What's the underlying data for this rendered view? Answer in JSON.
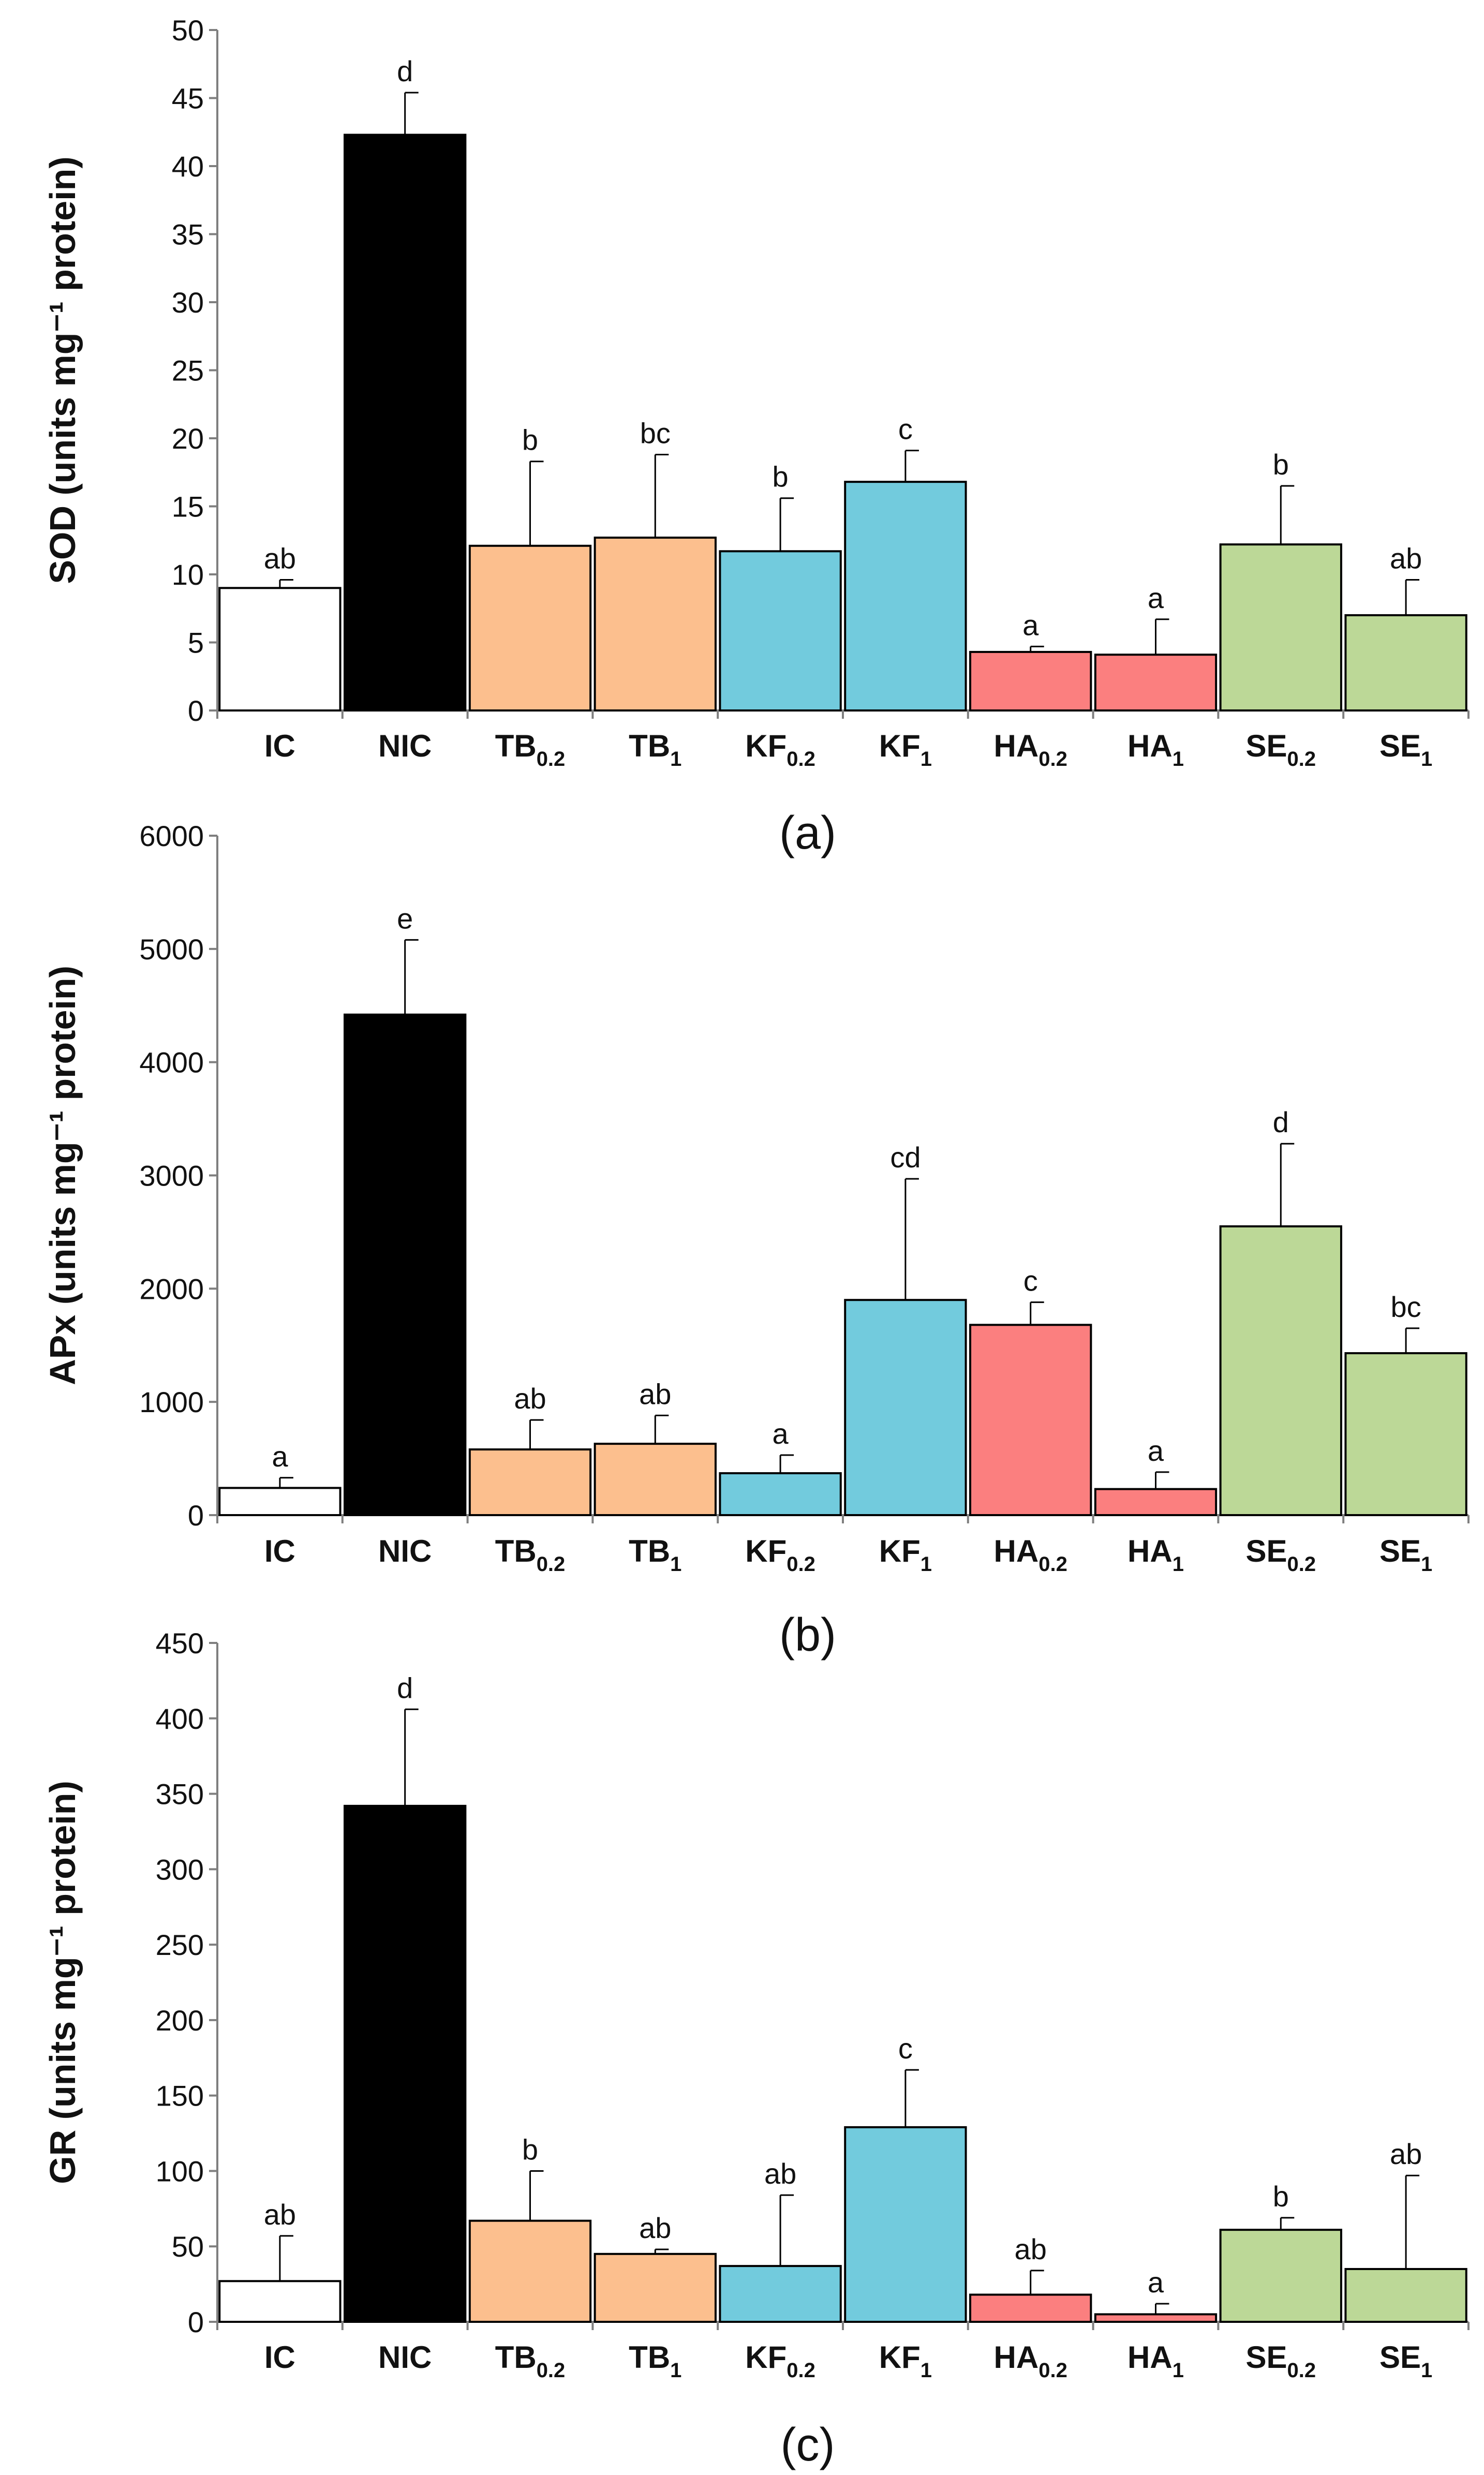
{
  "figure": {
    "panel_labels": [
      "(a)",
      "(b)",
      "(c)"
    ]
  },
  "chart_data": [
    {
      "type": "bar",
      "panel": "(a)",
      "ylabel": "SOD (units mg⁻¹ protein)",
      "xlabel": "",
      "ylim": [
        0,
        50
      ],
      "yticks": [
        0,
        5,
        10,
        15,
        20,
        25,
        30,
        35,
        40,
        45,
        50
      ],
      "categories": [
        {
          "base": "IC",
          "sub": ""
        },
        {
          "base": "NIC",
          "sub": ""
        },
        {
          "base": "TB",
          "sub": "0.2"
        },
        {
          "base": "TB",
          "sub": "1"
        },
        {
          "base": "KF",
          "sub": "0.2"
        },
        {
          "base": "KF",
          "sub": "1"
        },
        {
          "base": "HA",
          "sub": "0.2"
        },
        {
          "base": "HA",
          "sub": "1"
        },
        {
          "base": "SE",
          "sub": "0.2"
        },
        {
          "base": "SE",
          "sub": "1"
        }
      ],
      "values": [
        9.0,
        42.3,
        12.1,
        12.7,
        11.7,
        16.8,
        4.3,
        4.1,
        12.2,
        7.0
      ],
      "errors": [
        0.6,
        3.1,
        6.2,
        6.1,
        3.9,
        2.3,
        0.4,
        2.6,
        4.3,
        2.6
      ],
      "letters": [
        "ab",
        "d",
        "b",
        "bc",
        "b",
        "c",
        "a",
        "a",
        "b",
        "ab"
      ],
      "colors": [
        "#ffffff",
        "#000000",
        "#fcbf8e",
        "#fcbf8e",
        "#72cbdd",
        "#72cbdd",
        "#fb7f7f",
        "#fb7f7f",
        "#bcd897",
        "#bcd897"
      ]
    },
    {
      "type": "bar",
      "panel": "(b)",
      "ylabel": "APx (units mg⁻¹ protein)",
      "xlabel": "",
      "ylim": [
        0,
        6000
      ],
      "yticks": [
        0,
        1000,
        2000,
        3000,
        4000,
        5000,
        6000
      ],
      "categories": [
        {
          "base": "IC",
          "sub": ""
        },
        {
          "base": "NIC",
          "sub": ""
        },
        {
          "base": "TB",
          "sub": "0.2"
        },
        {
          "base": "TB",
          "sub": "1"
        },
        {
          "base": "KF",
          "sub": "0.2"
        },
        {
          "base": "KF",
          "sub": "1"
        },
        {
          "base": "HA",
          "sub": "0.2"
        },
        {
          "base": "HA",
          "sub": "1"
        },
        {
          "base": "SE",
          "sub": "0.2"
        },
        {
          "base": "SE",
          "sub": "1"
        }
      ],
      "values": [
        240,
        4420,
        580,
        630,
        370,
        1900,
        1680,
        230,
        2550,
        1430
      ],
      "errors": [
        90,
        660,
        260,
        250,
        160,
        1070,
        200,
        150,
        730,
        220
      ],
      "letters": [
        "a",
        "e",
        "ab",
        "ab",
        "a",
        "cd",
        "c",
        "a",
        "d",
        "bc"
      ],
      "colors": [
        "#ffffff",
        "#000000",
        "#fcbf8e",
        "#fcbf8e",
        "#72cbdd",
        "#72cbdd",
        "#fb7f7f",
        "#fb7f7f",
        "#bcd897",
        "#bcd897"
      ]
    },
    {
      "type": "bar",
      "panel": "(c)",
      "ylabel": "GR (units mg⁻¹ protein)",
      "xlabel": "",
      "ylim": [
        0,
        450
      ],
      "yticks": [
        0,
        50,
        100,
        150,
        200,
        250,
        300,
        350,
        400,
        450
      ],
      "categories": [
        {
          "base": "IC",
          "sub": ""
        },
        {
          "base": "NIC",
          "sub": ""
        },
        {
          "base": "TB",
          "sub": "0.2"
        },
        {
          "base": "TB",
          "sub": "1"
        },
        {
          "base": "KF",
          "sub": "0.2"
        },
        {
          "base": "KF",
          "sub": "1"
        },
        {
          "base": "HA",
          "sub": "0.2"
        },
        {
          "base": "HA",
          "sub": "1"
        },
        {
          "base": "SE",
          "sub": "0.2"
        },
        {
          "base": "SE",
          "sub": "1"
        }
      ],
      "values": [
        27,
        342,
        67,
        45,
        37,
        129,
        18,
        5,
        61,
        35
      ],
      "errors": [
        30,
        64,
        33,
        3,
        47,
        38,
        16,
        7,
        8,
        62
      ],
      "letters": [
        "ab",
        "d",
        "b",
        "ab",
        "ab",
        "c",
        "ab",
        "a",
        "b",
        "ab"
      ],
      "colors": [
        "#ffffff",
        "#000000",
        "#fcbf8e",
        "#fcbf8e",
        "#72cbdd",
        "#72cbdd",
        "#fb7f7f",
        "#fb7f7f",
        "#bcd897",
        "#bcd897"
      ]
    }
  ]
}
